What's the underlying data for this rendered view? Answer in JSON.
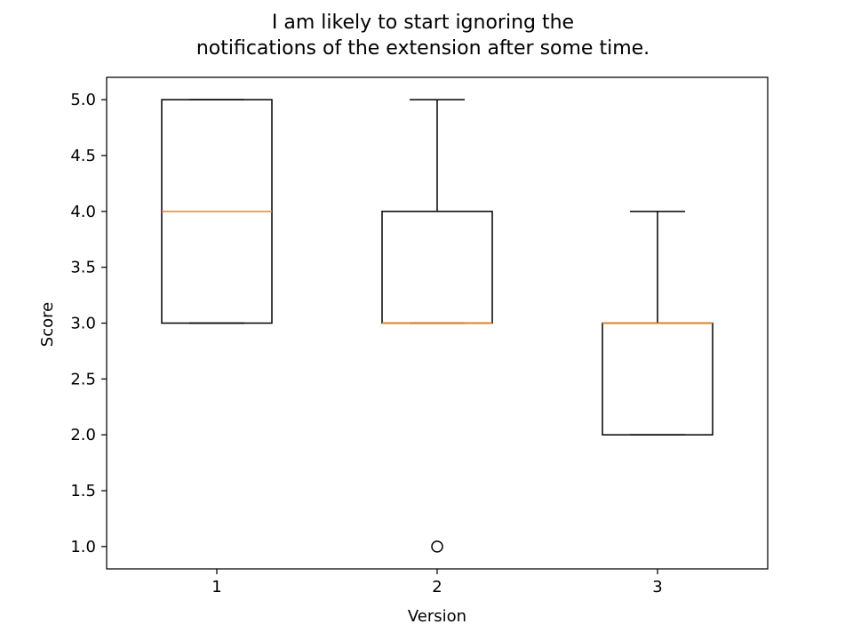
{
  "chart_data": {
    "type": "boxplot",
    "title": [
      "I am likely to start ignoring the",
      "notifications of the extension after some time."
    ],
    "xlabel": "Version",
    "ylabel": "Score",
    "categories": [
      "1",
      "2",
      "3"
    ],
    "ylim": [
      0.8,
      5.2
    ],
    "yticks": [
      1.0,
      1.5,
      2.0,
      2.5,
      3.0,
      3.5,
      4.0,
      4.5,
      5.0
    ],
    "ytick_labels": [
      "1.0",
      "1.5",
      "2.0",
      "2.5",
      "3.0",
      "3.5",
      "4.0",
      "4.5",
      "5.0"
    ],
    "grid": false,
    "boxes": [
      {
        "category": "1",
        "whisker_low": 3.0,
        "q1": 3.0,
        "median": 4.0,
        "q3": 5.0,
        "whisker_high": 5.0,
        "outliers": []
      },
      {
        "category": "2",
        "whisker_low": 3.0,
        "q1": 3.0,
        "median": 3.0,
        "q3": 4.0,
        "whisker_high": 5.0,
        "outliers": [
          1.0
        ]
      },
      {
        "category": "3",
        "whisker_low": 2.0,
        "q1": 2.0,
        "median": 3.0,
        "q3": 3.0,
        "whisker_high": 4.0,
        "outliers": []
      }
    ],
    "colors": {
      "box": "#000000",
      "median": "#ff7f0e",
      "axes": "#000000"
    }
  }
}
